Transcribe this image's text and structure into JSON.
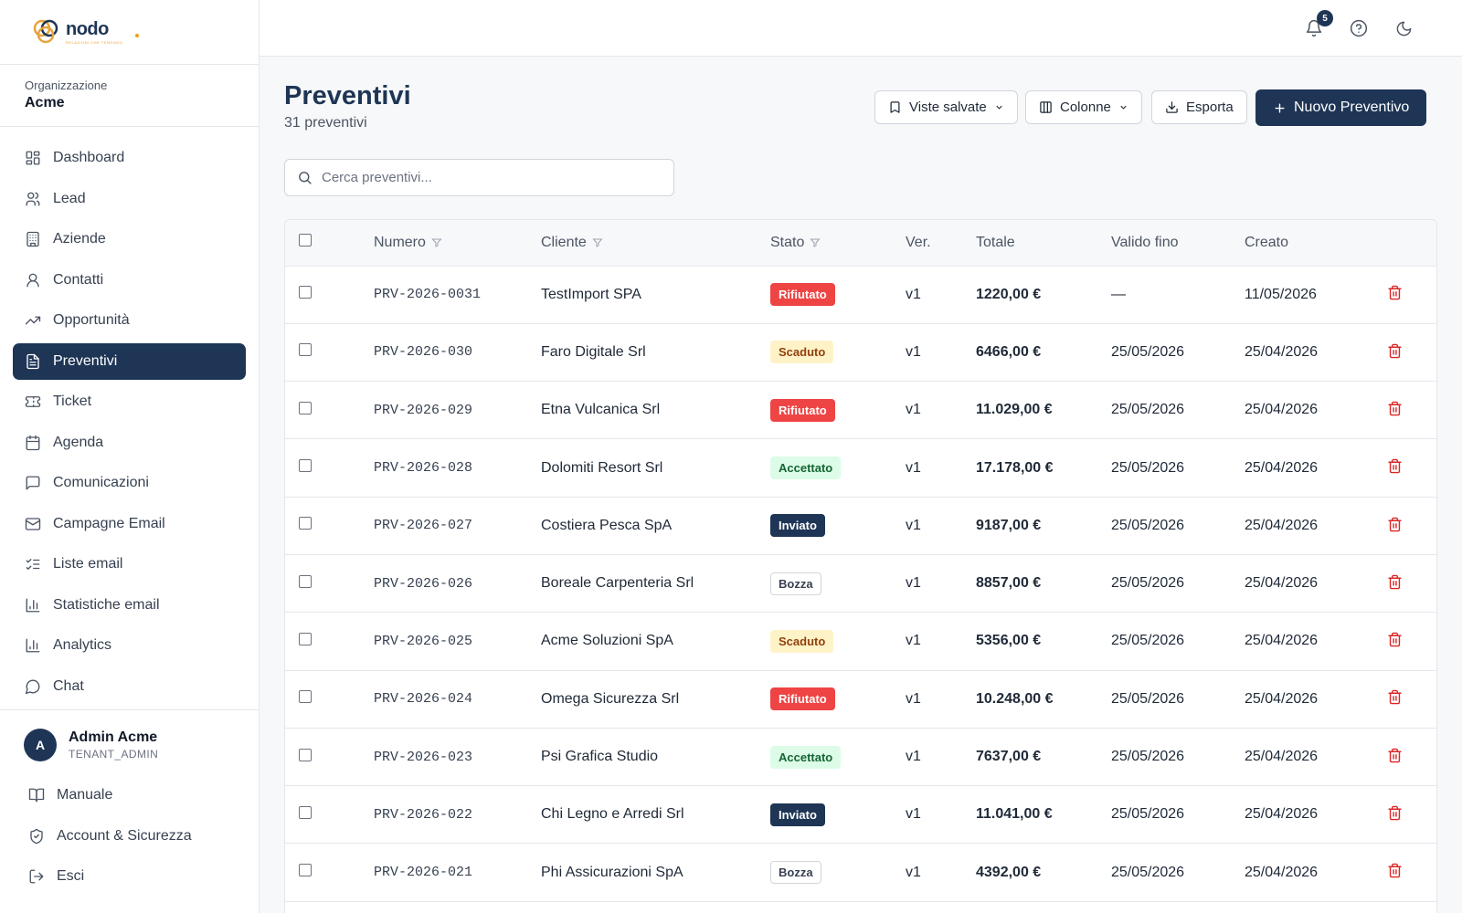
{
  "brand": {
    "name": "nodo",
    "tagline": "RELAZIONI CHE TENGONO"
  },
  "org": {
    "label": "Organizzazione",
    "name": "Acme"
  },
  "nav": [
    {
      "label": "Dashboard",
      "icon": "dashboard-icon"
    },
    {
      "label": "Lead",
      "icon": "users-icon"
    },
    {
      "label": "Aziende",
      "icon": "building-icon"
    },
    {
      "label": "Contatti",
      "icon": "user-icon"
    },
    {
      "label": "Opportunità",
      "icon": "trending-up-icon"
    },
    {
      "label": "Preventivi",
      "icon": "file-text-icon",
      "active": true
    },
    {
      "label": "Ticket",
      "icon": "ticket-icon"
    },
    {
      "label": "Agenda",
      "icon": "calendar-icon"
    },
    {
      "label": "Comunicazioni",
      "icon": "message-square-icon"
    },
    {
      "label": "Campagne Email",
      "icon": "mail-icon"
    },
    {
      "label": "Liste email",
      "icon": "list-checks-icon"
    },
    {
      "label": "Statistiche email",
      "icon": "bar-chart-icon"
    },
    {
      "label": "Analytics",
      "icon": "bar-chart-icon"
    },
    {
      "label": "Chat",
      "icon": "message-circle-icon"
    }
  ],
  "user": {
    "initial": "A",
    "name": "Admin Acme",
    "role": "TENANT_ADMIN",
    "links": [
      {
        "label": "Manuale",
        "icon": "book-icon"
      },
      {
        "label": "Account & Sicurezza",
        "icon": "shield-icon"
      },
      {
        "label": "Esci",
        "icon": "logout-icon"
      }
    ]
  },
  "topbar": {
    "notification_count": "5"
  },
  "page": {
    "title": "Preventivi",
    "subtitle": "31 preventivi",
    "saved_views": "Viste salvate",
    "columns": "Colonne",
    "export": "Esporta",
    "new_quote": "Nuovo Preventivo",
    "search_placeholder": "Cerca preventivi..."
  },
  "table": {
    "headers": {
      "numero": "Numero",
      "cliente": "Cliente",
      "stato": "Stato",
      "ver": "Ver.",
      "totale": "Totale",
      "valido": "Valido fino",
      "creato": "Creato"
    },
    "rows": [
      {
        "numero": "PRV-2026-0031",
        "cliente": "TestImport SPA",
        "stato": "Rifiutato",
        "ver": "v1",
        "totale": "1220,00 €",
        "valido": "—",
        "creato": "11/05/2026"
      },
      {
        "numero": "PRV-2026-030",
        "cliente": "Faro Digitale Srl",
        "stato": "Scaduto",
        "ver": "v1",
        "totale": "6466,00 €",
        "valido": "25/05/2026",
        "creato": "25/04/2026"
      },
      {
        "numero": "PRV-2026-029",
        "cliente": "Etna Vulcanica Srl",
        "stato": "Rifiutato",
        "ver": "v1",
        "totale": "11.029,00 €",
        "valido": "25/05/2026",
        "creato": "25/04/2026"
      },
      {
        "numero": "PRV-2026-028",
        "cliente": "Dolomiti Resort Srl",
        "stato": "Accettato",
        "ver": "v1",
        "totale": "17.178,00 €",
        "valido": "25/05/2026",
        "creato": "25/04/2026"
      },
      {
        "numero": "PRV-2026-027",
        "cliente": "Costiera Pesca SpA",
        "stato": "Inviato",
        "ver": "v1",
        "totale": "9187,00 €",
        "valido": "25/05/2026",
        "creato": "25/04/2026"
      },
      {
        "numero": "PRV-2026-026",
        "cliente": "Boreale Carpenteria Srl",
        "stato": "Bozza",
        "ver": "v1",
        "totale": "8857,00 €",
        "valido": "25/05/2026",
        "creato": "25/04/2026"
      },
      {
        "numero": "PRV-2026-025",
        "cliente": "Acme Soluzioni SpA",
        "stato": "Scaduto",
        "ver": "v1",
        "totale": "5356,00 €",
        "valido": "25/05/2026",
        "creato": "25/04/2026"
      },
      {
        "numero": "PRV-2026-024",
        "cliente": "Omega Sicurezza Srl",
        "stato": "Rifiutato",
        "ver": "v1",
        "totale": "10.248,00 €",
        "valido": "25/05/2026",
        "creato": "25/04/2026"
      },
      {
        "numero": "PRV-2026-023",
        "cliente": "Psi Grafica Studio",
        "stato": "Accettato",
        "ver": "v1",
        "totale": "7637,00 €",
        "valido": "25/05/2026",
        "creato": "25/04/2026"
      },
      {
        "numero": "PRV-2026-022",
        "cliente": "Chi Legno e Arredi Srl",
        "stato": "Inviato",
        "ver": "v1",
        "totale": "11.041,00 €",
        "valido": "25/05/2026",
        "creato": "25/04/2026"
      },
      {
        "numero": "PRV-2026-021",
        "cliente": "Phi Assicurazioni SpA",
        "stato": "Bozza",
        "ver": "v1",
        "totale": "4392,00 €",
        "valido": "25/05/2026",
        "creato": "25/04/2026"
      }
    ]
  },
  "colors": {
    "primary": "#1e3555",
    "danger": "#dc2626",
    "status": {
      "Rifiutato": {
        "bg": "#ef4444",
        "fg": "#ffffff",
        "border": "#ef4444"
      },
      "Scaduto": {
        "bg": "#fef3c7",
        "fg": "#92400e",
        "border": "#fef3c7"
      },
      "Accettato": {
        "bg": "#dcfce7",
        "fg": "#166534",
        "border": "#dcfce7"
      },
      "Inviato": {
        "bg": "#1e3555",
        "fg": "#ffffff",
        "border": "#1e3555"
      },
      "Bozza": {
        "bg": "#ffffff",
        "fg": "#374151",
        "border": "#d1d5db"
      }
    }
  }
}
